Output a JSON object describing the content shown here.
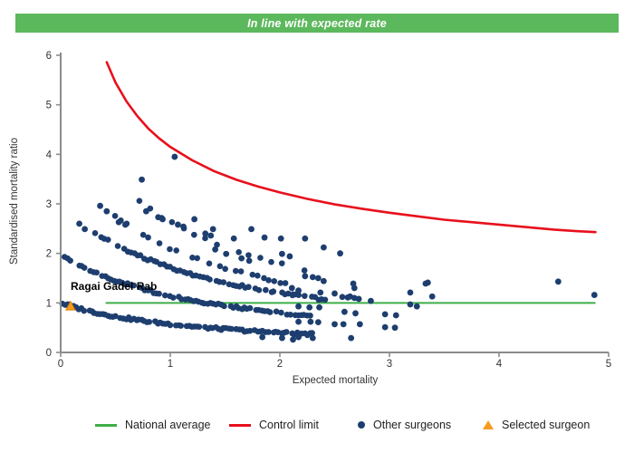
{
  "banner": {
    "text": "In line with expected rate",
    "bg": "#5cb85c",
    "fg": "#ffffff"
  },
  "chart_data": {
    "type": "scatter",
    "xlabel": "Expected mortality",
    "ylabel": "Standardised mortality ratio",
    "xlim": [
      0,
      5
    ],
    "ylim": [
      0,
      6
    ],
    "x_ticks": [
      0,
      1,
      2,
      3,
      4,
      5
    ],
    "y_ticks": [
      0,
      1,
      2,
      3,
      4,
      5,
      6
    ],
    "grid": "off",
    "legend_position": "bottom",
    "colors": {
      "dots": "#1d3e6f",
      "control_limit": "#e8101c",
      "national_average": "#3fae49",
      "selected": "#f59c20",
      "axis": "#8c8c8c",
      "tick_text": "#333333"
    },
    "national_average": {
      "y": 1.0,
      "x_start": 0.41,
      "x_end": 4.88
    },
    "control_limit_points": [
      [
        0.42,
        5.86
      ],
      [
        0.5,
        5.45
      ],
      [
        0.6,
        5.07
      ],
      [
        0.7,
        4.77
      ],
      [
        0.8,
        4.52
      ],
      [
        0.9,
        4.32
      ],
      [
        1.0,
        4.15
      ],
      [
        1.2,
        3.88
      ],
      [
        1.4,
        3.66
      ],
      [
        1.6,
        3.49
      ],
      [
        1.8,
        3.35
      ],
      [
        2.0,
        3.23
      ],
      [
        2.25,
        3.1
      ],
      [
        2.5,
        2.99
      ],
      [
        2.75,
        2.9
      ],
      [
        3.0,
        2.82
      ],
      [
        3.25,
        2.75
      ],
      [
        3.5,
        2.68
      ],
      [
        3.75,
        2.63
      ],
      [
        4.0,
        2.58
      ],
      [
        4.25,
        2.53
      ],
      [
        4.5,
        2.48
      ],
      [
        4.7,
        2.45
      ],
      [
        4.88,
        2.43
      ]
    ],
    "selected_surgeon": {
      "label": "Ragai Gadel Rab",
      "x": 0.09,
      "y": 0.93
    },
    "surgeon_bands": [
      {
        "deaths": 1,
        "k": 0.75,
        "x_start": 0.02,
        "x_end": 2.32,
        "step": 0.024,
        "gap": 0.13
      },
      {
        "deaths": 2,
        "k": 0.75,
        "x_start": 0.04,
        "x_end": 2.28,
        "step": 0.026,
        "gap": 0.15
      },
      {
        "deaths": 3,
        "k": 0.75,
        "x_start": 0.28,
        "x_end": 2.42,
        "step": 0.03,
        "gap": 0.18
      },
      {
        "deaths": 4,
        "k": 0.9,
        "x_start": 0.5,
        "x_end": 2.12,
        "step": 0.05,
        "gap": 0.22
      },
      {
        "deaths": 5,
        "k": 0.9,
        "x_start": 0.72,
        "x_end": 2.3,
        "step": 0.1,
        "gap": 0.1
      }
    ],
    "scattered_surgeons": [
      [
        0.17,
        2.6
      ],
      [
        0.22,
        2.49
      ],
      [
        0.36,
        2.96
      ],
      [
        0.42,
        2.85
      ],
      [
        0.53,
        2.63
      ],
      [
        0.59,
        2.58
      ],
      [
        0.74,
        3.49
      ],
      [
        0.78,
        2.85
      ],
      [
        0.89,
        2.73
      ],
      [
        0.93,
        2.69
      ],
      [
        1.04,
        3.95
      ],
      [
        1.07,
        2.58
      ],
      [
        1.12,
        2.54
      ],
      [
        1.22,
        2.69
      ],
      [
        1.32,
        2.4
      ],
      [
        1.37,
        2.36
      ],
      [
        1.39,
        2.49
      ],
      [
        1.41,
        2.08
      ],
      [
        1.51,
        1.99
      ],
      [
        1.58,
        2.3
      ],
      [
        1.65,
        1.9
      ],
      [
        1.72,
        1.85
      ],
      [
        1.74,
        2.49
      ],
      [
        1.86,
        2.32
      ],
      [
        1.94,
        1.23
      ],
      [
        2.01,
        2.3
      ],
      [
        2.02,
        1.99
      ],
      [
        2.09,
        1.94
      ],
      [
        2.11,
        1.3
      ],
      [
        2.12,
        1.17
      ],
      [
        2.17,
        1.25
      ],
      [
        2.17,
        0.93
      ],
      [
        2.17,
        0.62
      ],
      [
        2.17,
        0.31
      ],
      [
        2.23,
        1.54
      ],
      [
        2.23,
        2.3
      ],
      [
        2.27,
        0.91
      ],
      [
        2.28,
        0.62
      ],
      [
        2.3,
        1.52
      ],
      [
        2.3,
        0.29
      ],
      [
        2.35,
        1.5
      ],
      [
        2.35,
        0.61
      ],
      [
        2.36,
        0.91
      ],
      [
        2.37,
        1.21
      ],
      [
        2.4,
        1.44
      ],
      [
        2.4,
        2.12
      ],
      [
        2.5,
        1.19
      ],
      [
        2.5,
        0.57
      ],
      [
        2.55,
        2.0
      ],
      [
        2.57,
        1.12
      ],
      [
        2.58,
        0.57
      ],
      [
        2.59,
        0.82
      ],
      [
        2.62,
        1.11
      ],
      [
        2.64,
        1.13
      ],
      [
        2.65,
        0.29
      ],
      [
        2.67,
        1.39
      ],
      [
        2.68,
        1.3
      ],
      [
        2.68,
        1.1
      ],
      [
        2.69,
        0.79
      ],
      [
        2.72,
        1.08
      ],
      [
        2.73,
        0.57
      ],
      [
        2.83,
        1.04
      ],
      [
        2.96,
        0.77
      ],
      [
        2.96,
        0.51
      ],
      [
        3.05,
        0.5
      ],
      [
        3.06,
        0.75
      ],
      [
        3.19,
        1.21
      ],
      [
        3.19,
        0.97
      ],
      [
        3.25,
        0.93
      ],
      [
        3.33,
        1.39
      ],
      [
        3.35,
        1.41
      ],
      [
        3.39,
        1.13
      ],
      [
        4.54,
        1.43
      ],
      [
        4.87,
        1.16
      ],
      [
        1.84,
        0.31
      ],
      [
        2.02,
        0.29
      ],
      [
        2.12,
        0.26
      ]
    ]
  },
  "legend": {
    "items": [
      {
        "label": "National average",
        "type": "line",
        "color": "#3fae49"
      },
      {
        "label": "Control limit",
        "type": "line",
        "color": "#e8101c"
      },
      {
        "label": "Other surgeons",
        "type": "dot",
        "color": "#1d3e6f"
      },
      {
        "label": "Selected surgeon",
        "type": "triangle",
        "color": "#f59c20"
      }
    ]
  }
}
